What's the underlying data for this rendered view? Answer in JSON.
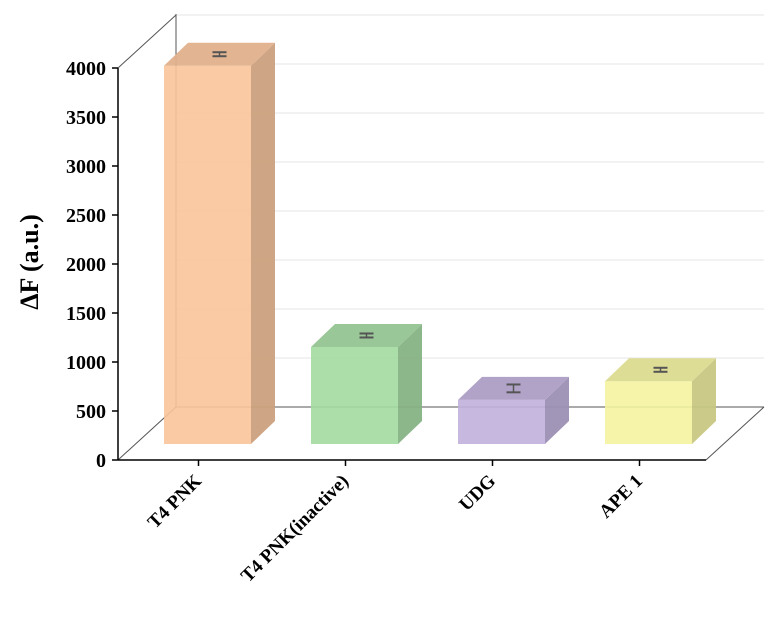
{
  "chart_data": {
    "type": "bar",
    "style": "3d",
    "categories": [
      "T4 PNK",
      "T4 PNK(inactive)",
      "UDG",
      "APE 1"
    ],
    "values": [
      3860,
      990,
      450,
      640
    ],
    "errors": [
      20,
      15,
      40,
      15
    ],
    "colors": [
      "#f9c49a",
      "#a3daa1",
      "#c0b0db",
      "#f4f3a0"
    ],
    "xlabel": "",
    "ylabel": "ΔF (a.u.)",
    "yticks": [
      0,
      500,
      1000,
      1500,
      2000,
      2500,
      3000,
      3500,
      4000
    ],
    "ylim": [
      0,
      4000
    ],
    "grid": true
  }
}
